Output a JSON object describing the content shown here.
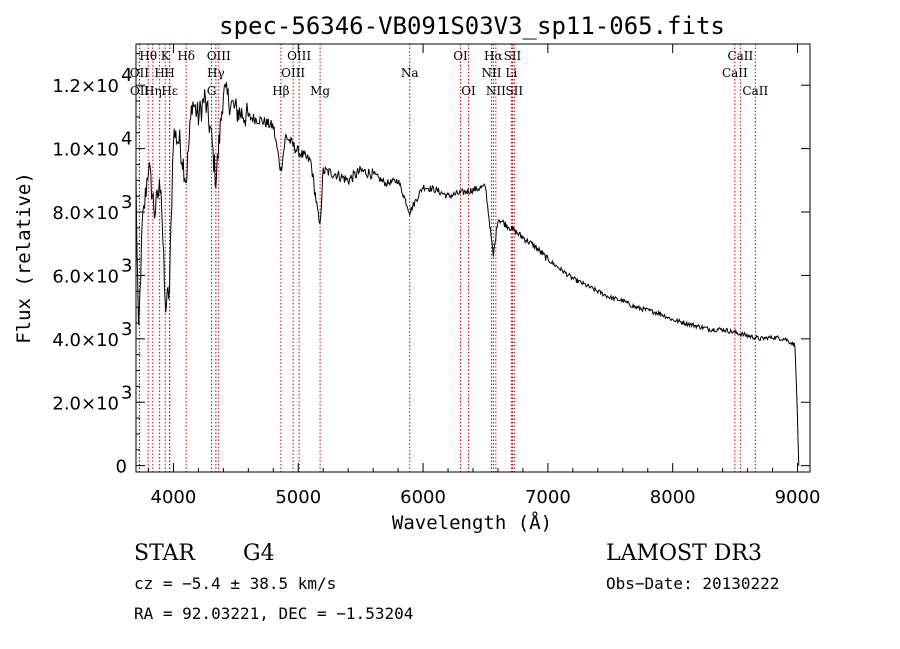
{
  "chart_data": {
    "type": "line",
    "title": "spec-56346-VB091S03V3_sp11-065.fits",
    "xlabel": "Wavelength (Å)",
    "ylabel": "Flux (relative)",
    "xlim": [
      3700,
      9100
    ],
    "ylim": [
      -200,
      13300
    ],
    "x_ticks": [
      {
        "value": 4000,
        "label": "4000"
      },
      {
        "value": 5000,
        "label": "5000"
      },
      {
        "value": 6000,
        "label": "6000"
      },
      {
        "value": 7000,
        "label": "7000"
      },
      {
        "value": 8000,
        "label": "8000"
      },
      {
        "value": 9000,
        "label": "9000"
      }
    ],
    "y_ticks": [
      {
        "value": 0,
        "mantissa": "0",
        "exp": ""
      },
      {
        "value": 2000,
        "mantissa": "2.0×10",
        "exp": "3"
      },
      {
        "value": 4000,
        "mantissa": "4.0×10",
        "exp": "3"
      },
      {
        "value": 6000,
        "mantissa": "6.0×10",
        "exp": "3"
      },
      {
        "value": 8000,
        "mantissa": "8.0×10",
        "exp": "3"
      },
      {
        "value": 10000,
        "mantissa": "1.0×10",
        "exp": "4"
      },
      {
        "value": 12000,
        "mantissa": "1.2×10",
        "exp": "4"
      }
    ],
    "line_color": "#000000",
    "marker_color": "#cc0000",
    "spectrum_anchors": [
      [
        3700,
        9000
      ],
      [
        3720,
        4000
      ],
      [
        3750,
        7500
      ],
      [
        3800,
        9500
      ],
      [
        3850,
        8000
      ],
      [
        3900,
        9000
      ],
      [
        3933,
        5000
      ],
      [
        3968,
        5500
      ],
      [
        4000,
        10500
      ],
      [
        4050,
        10200
      ],
      [
        4102,
        9000
      ],
      [
        4150,
        11500
      ],
      [
        4200,
        11000
      ],
      [
        4250,
        11600
      ],
      [
        4300,
        10500
      ],
      [
        4340,
        9000
      ],
      [
        4400,
        11800
      ],
      [
        4450,
        11500
      ],
      [
        4500,
        11200
      ],
      [
        4600,
        11000
      ],
      [
        4700,
        10900
      ],
      [
        4800,
        10700
      ],
      [
        4861,
        9300
      ],
      [
        4900,
        10400
      ],
      [
        5000,
        9900
      ],
      [
        5100,
        9600
      ],
      [
        5173,
        7500
      ],
      [
        5200,
        9300
      ],
      [
        5300,
        9200
      ],
      [
        5400,
        9000
      ],
      [
        5500,
        9300
      ],
      [
        5600,
        9200
      ],
      [
        5700,
        8900
      ],
      [
        5800,
        9000
      ],
      [
        5893,
        8000
      ],
      [
        6000,
        8800
      ],
      [
        6100,
        8700
      ],
      [
        6200,
        8500
      ],
      [
        6300,
        8600
      ],
      [
        6400,
        8700
      ],
      [
        6500,
        8800
      ],
      [
        6563,
        6600
      ],
      [
        6600,
        7800
      ],
      [
        6700,
        7500
      ],
      [
        6800,
        7200
      ],
      [
        6900,
        6900
      ],
      [
        7000,
        6500
      ],
      [
        7100,
        6200
      ],
      [
        7200,
        5900
      ],
      [
        7300,
        5700
      ],
      [
        7400,
        5500
      ],
      [
        7500,
        5300
      ],
      [
        7600,
        5200
      ],
      [
        7700,
        5000
      ],
      [
        7800,
        4900
      ],
      [
        7900,
        4800
      ],
      [
        8000,
        4600
      ],
      [
        8100,
        4500
      ],
      [
        8200,
        4400
      ],
      [
        8300,
        4300
      ],
      [
        8400,
        4300
      ],
      [
        8500,
        4200
      ],
      [
        8600,
        4100
      ],
      [
        8700,
        4000
      ],
      [
        8800,
        4050
      ],
      [
        8900,
        4000
      ],
      [
        8980,
        3800
      ],
      [
        9000,
        1500
      ],
      [
        9010,
        0
      ]
    ],
    "spectral_lines": [
      {
        "label": "Hθ",
        "wl": 3798,
        "row": 0
      },
      {
        "label": "OII",
        "wl": 3727,
        "row": 1
      },
      {
        "label": "OII",
        "wl": 3729,
        "row": 2
      },
      {
        "label": "Hη",
        "wl": 3835,
        "row": 2
      },
      {
        "label": "K",
        "wl": 3934,
        "row": 0
      },
      {
        "label": "H",
        "wl": 3969,
        "row": 1
      },
      {
        "label": "Hε",
        "wl": 3970,
        "row": 2
      },
      {
        "label": "Hδ",
        "wl": 4102,
        "row": 0
      },
      {
        "label": "H",
        "wl": 3889,
        "row": 1
      },
      {
        "label": "OIII",
        "wl": 4363,
        "row": 0
      },
      {
        "label": "Hγ",
        "wl": 4340,
        "row": 1
      },
      {
        "label": "G",
        "wl": 4305,
        "row": 2
      },
      {
        "label": "OIII",
        "wl": 5007,
        "row": 0
      },
      {
        "label": "OIII",
        "wl": 4959,
        "row": 1
      },
      {
        "label": "Hβ",
        "wl": 4861,
        "row": 2
      },
      {
        "label": "Mg",
        "wl": 5175,
        "row": 2
      },
      {
        "label": "Na",
        "wl": 5893,
        "row": 1
      },
      {
        "label": "OI",
        "wl": 6300,
        "row": 0
      },
      {
        "label": "OI",
        "wl": 6364,
        "row": 2
      },
      {
        "label": "Hα",
        "wl": 6563,
        "row": 0
      },
      {
        "label": "NII",
        "wl": 6548,
        "row": 1
      },
      {
        "label": "NII",
        "wl": 6583,
        "row": 2
      },
      {
        "label": "SII",
        "wl": 6716,
        "row": 0
      },
      {
        "label": "Li",
        "wl": 6707,
        "row": 1
      },
      {
        "label": "SII",
        "wl": 6731,
        "row": 2
      },
      {
        "label": "CaII",
        "wl": 8542,
        "row": 0
      },
      {
        "label": "CaII",
        "wl": 8498,
        "row": 1
      },
      {
        "label": "CaII",
        "wl": 8662,
        "row": 2
      }
    ]
  },
  "info": {
    "class": "STAR",
    "subclass": "G4",
    "survey": "LAMOST DR3",
    "cz": "cz = −5.4 ± 38.5 km/s",
    "obs_date": "Obs−Date: 20130222",
    "radec": "RA =  92.03221, DEC =  −1.53204"
  }
}
